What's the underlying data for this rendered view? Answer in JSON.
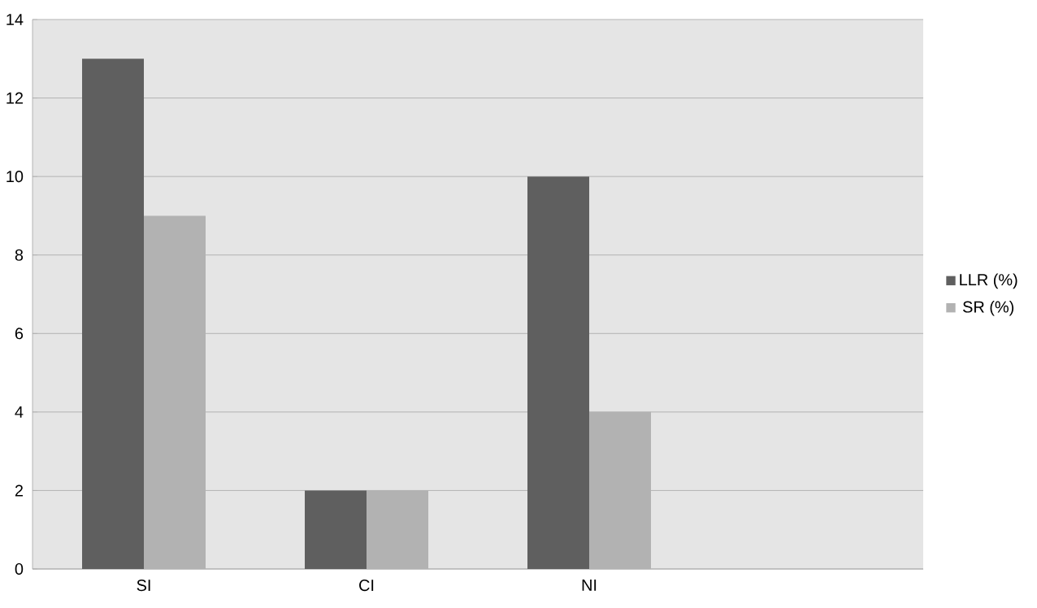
{
  "chart_data": {
    "type": "bar",
    "categories": [
      "SI",
      "CI",
      "NI",
      null
    ],
    "series": [
      {
        "name": "LLR (%)",
        "color": "#5f5f5f",
        "values": [
          13,
          2,
          10,
          null
        ]
      },
      {
        "name": "SR (%)",
        "color": "#b2b2b2",
        "values": [
          9,
          2,
          4,
          null
        ]
      }
    ],
    "ylim": [
      0,
      14
    ],
    "yticks": [
      0,
      2,
      4,
      6,
      8,
      10,
      12,
      14
    ],
    "grid": "y",
    "legend": "right"
  }
}
